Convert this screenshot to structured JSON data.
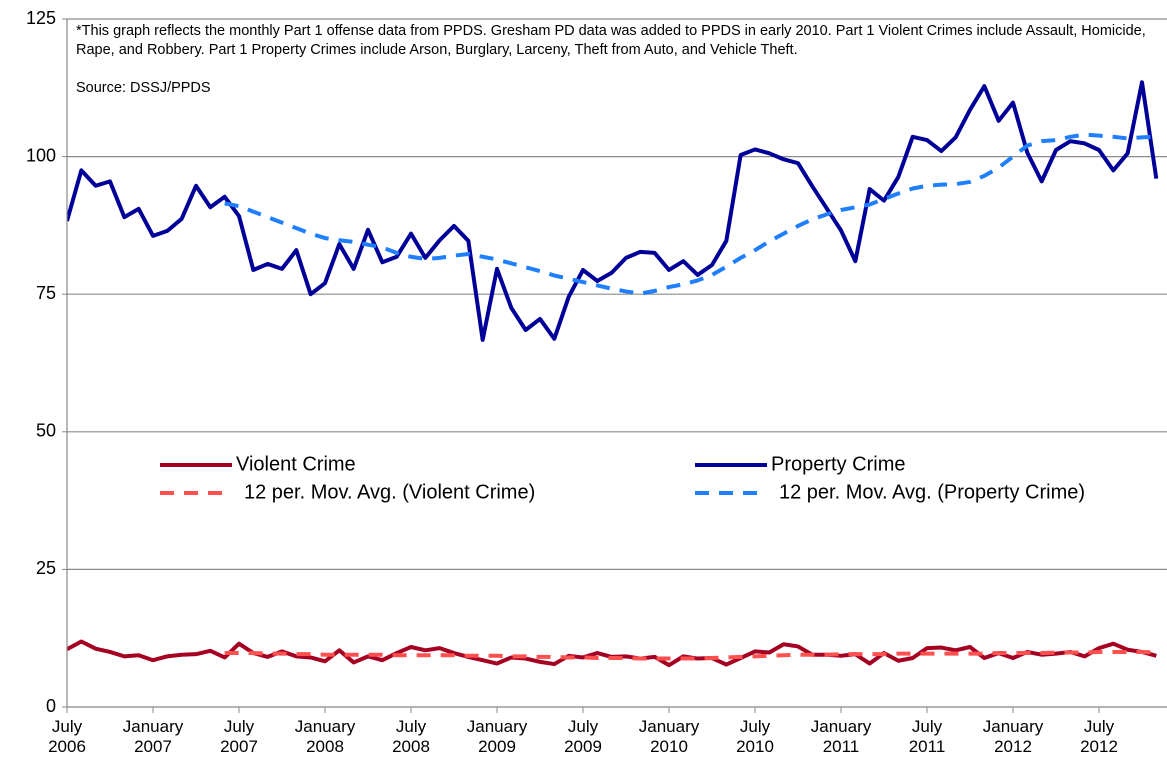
{
  "chart_data": {
    "type": "line",
    "annotation": "*This graph reflects the monthly Part 1 offense data from PPDS. Gresham PD data was added to PPDS in early 2010.  Part 1 Violent Crimes include Assault, Homicide, Rape, and Robbery.  Part 1 Property Crimes include Arson, Burglary, Larceny, Theft from Auto, and Vehicle Theft.",
    "source": "Source: DSSJ/PPDS",
    "categories": [
      "July 2006",
      null,
      null,
      null,
      null,
      null,
      "January 2007",
      null,
      null,
      null,
      null,
      null,
      "July 2007",
      null,
      null,
      null,
      null,
      null,
      "January 2008",
      null,
      null,
      null,
      null,
      null,
      "July 2008",
      null,
      null,
      null,
      null,
      null,
      "January 2009",
      null,
      null,
      null,
      null,
      null,
      "July 2009",
      null,
      null,
      null,
      null,
      null,
      "January 2010",
      null,
      null,
      null,
      null,
      null,
      "July 2010",
      null,
      null,
      null,
      null,
      null,
      "January 2011",
      null,
      null,
      null,
      null,
      null,
      "July 2011",
      null,
      null,
      null,
      null,
      null,
      "January 2012",
      null,
      null,
      null,
      null,
      null,
      "July 2012",
      null,
      null,
      null,
      null
    ],
    "ylim": [
      0,
      125
    ],
    "yticks": [
      0,
      25,
      50,
      75,
      100,
      125
    ],
    "grid": true,
    "legend": "center",
    "series": [
      {
        "name": "Violent Crime",
        "color": "#a50021",
        "dash": false,
        "values": [
          10.5,
          11.9,
          10.6,
          10,
          9.2,
          9.4,
          8.5,
          9.2,
          9.5,
          9.6,
          10.2,
          9,
          11.5,
          9.8,
          9.1,
          10.1,
          9.2,
          9,
          8.3,
          10.3,
          8.1,
          9.2,
          8.5,
          9.8,
          10.9,
          10.3,
          10.7,
          9.8,
          9.1,
          8.5,
          7.9,
          9,
          8.8,
          8.2,
          7.8,
          9.3,
          9,
          9.8,
          9.1,
          9.2,
          8.8,
          9.1,
          7.6,
          9.2,
          8.8,
          8.9,
          7.7,
          8.9,
          10.1,
          9.9,
          11.4,
          11,
          9.5,
          9.5,
          9.3,
          9.6,
          7.9,
          9.8,
          8.4,
          8.9,
          10.7,
          10.8,
          10.3,
          10.9,
          8.9,
          9.8,
          8.9,
          10,
          9.5,
          9.7,
          10,
          9.2,
          10.7,
          11.5,
          10.4,
          10,
          9.3
        ]
      },
      {
        "name": "Property Crime",
        "color": "#000099",
        "dash": false,
        "values": [
          88.3,
          97.5,
          94.7,
          95.5,
          89,
          90.5,
          85.6,
          86.5,
          88.7,
          94.7,
          90.8,
          92.7,
          89.2,
          79.4,
          80.5,
          79.6,
          83,
          75,
          77,
          84.1,
          79.6,
          86.7,
          80.8,
          81.8,
          86,
          81.6,
          84.8,
          87.4,
          84.7,
          66.7,
          79.6,
          72.5,
          68.5,
          70.5,
          66.9,
          74.5,
          79.4,
          77.4,
          78.9,
          81.6,
          82.7,
          82.5,
          79.4,
          81,
          78.5,
          80.3,
          84.7,
          100.3,
          101.3,
          100.6,
          99.5,
          98.8,
          94.6,
          90.6,
          86.6,
          81,
          94.1,
          92,
          96.3,
          103.6,
          103,
          101,
          103.5,
          108.5,
          112.8,
          106.5,
          109.8,
          100.7,
          95.5,
          101.2,
          102.8,
          102.4,
          101.2,
          97.5,
          100.6,
          113.5,
          96
        ]
      },
      {
        "name": "12 per. Mov. Avg. (Violent Crime)",
        "color": "#ff5050",
        "dash": true,
        "values": [
          null,
          null,
          null,
          null,
          null,
          null,
          null,
          null,
          null,
          null,
          null,
          9.8,
          9.8,
          9.8,
          9.7,
          9.7,
          9.6,
          9.6,
          9.5,
          9.5,
          9.5,
          9.5,
          9.5,
          9.4,
          9.4,
          9.4,
          9.4,
          9.4,
          9.3,
          9.3,
          9.3,
          9.2,
          9.2,
          9.1,
          9.1,
          9.0,
          9.0,
          8.9,
          8.9,
          8.9,
          8.8,
          8.8,
          8.8,
          8.8,
          8.8,
          8.9,
          9.0,
          9.1,
          9.2,
          9.3,
          9.4,
          9.5,
          9.5,
          9.5,
          9.6,
          9.6,
          9.6,
          9.6,
          9.7,
          9.7,
          9.7,
          9.7,
          9.7,
          9.7,
          9.7,
          9.8,
          9.8,
          9.8,
          9.8,
          9.9,
          9.9,
          9.9,
          10,
          10,
          10,
          10,
          9.9
        ]
      },
      {
        "name": "12 per. Mov. Avg. (Property Crime)",
        "color": "#1f7fff",
        "dash": true,
        "values": [
          null,
          null,
          null,
          null,
          null,
          null,
          null,
          null,
          null,
          null,
          null,
          91.5,
          91,
          90,
          89,
          88,
          87,
          86,
          85.2,
          84.8,
          84.5,
          84,
          83.5,
          82.5,
          81.8,
          81.4,
          81.6,
          82,
          82.3,
          81.8,
          81.3,
          80.6,
          79.9,
          79.2,
          78.4,
          77.8,
          77.2,
          76.6,
          76,
          75.5,
          75.1,
          75.6,
          76.3,
          76.8,
          77.5,
          78.5,
          80,
          81.6,
          83,
          84.6,
          86,
          87.4,
          88.6,
          89.5,
          90.3,
          90.8,
          91.3,
          92.3,
          93.3,
          94.2,
          94.7,
          94.9,
          95,
          95.4,
          96.5,
          98,
          100,
          102,
          102.8,
          103,
          103.6,
          104,
          103.8,
          103.6,
          103.3,
          103.5,
          103.6
        ]
      }
    ]
  }
}
